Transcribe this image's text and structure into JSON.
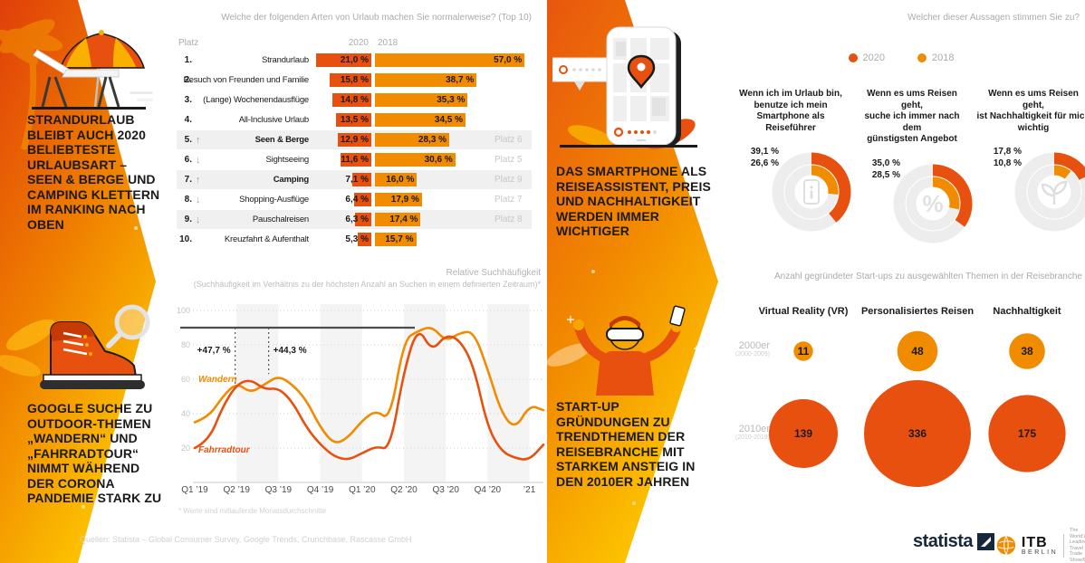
{
  "colors": {
    "red2020": "#E8500F",
    "orange2018": "#F18B00",
    "grayText": "#ABABAB",
    "dark": "#1A1A1A"
  },
  "headlines": {
    "beach": "STRANDURLAUB\nBLEIBT AUCH 2020\nBELIEBTESTE\nURLAUBSART –\nSEEN & BERGE UND\nCAMPING KLETTERN\nIM RANKING NACH\nOBEN",
    "smartphone": "DAS SMARTPHONE ALS\nREISEASSISTENT, PREIS\nUND NACHHALTIGKEIT\nWERDEN IMMER\nWICHTIGER",
    "outdoor": "GOOGLE SUCHE ZU\nOUTDOOR-THEMEN\n„WANDERN“ UND\n„FAHRRADTOUR“\nNIMMT WÄHREND\nDER CORONA\nPANDEMIE STARK ZU",
    "startup": "START-UP\nGRÜNDUNGEN ZU\nTRENDTHEMEN DER\nREISEBRANCHE MIT\nSTARKEM ANSTEIG IN\nDEN 2010ER JAHREN"
  },
  "chart_data": [
    {
      "id": "ranking",
      "type": "bar",
      "title": "Welche der folgenden Arten von Urlaub machen Sie normalerweise? (Top 10)",
      "rank_header": "Platz",
      "series_headers": [
        "2020",
        "2018"
      ],
      "rows": [
        {
          "rank": "1.",
          "trend": "",
          "label": "Strandurlaub",
          "bold": false,
          "highlight": false,
          "v2020": 21.0,
          "l2020": "21,0 %",
          "v2018": 57.0,
          "l2018": "57,0 %",
          "prev": ""
        },
        {
          "rank": "2.",
          "trend": "",
          "label": "Besuch von Freunden und Familie",
          "bold": false,
          "highlight": false,
          "v2020": 15.8,
          "l2020": "15,8 %",
          "v2018": 38.7,
          "l2018": "38,7 %",
          "prev": ""
        },
        {
          "rank": "3.",
          "trend": "",
          "label": "(Lange) Wochenendausflüge",
          "bold": false,
          "highlight": false,
          "v2020": 14.8,
          "l2020": "14,8 %",
          "v2018": 35.3,
          "l2018": "35,3 %",
          "prev": ""
        },
        {
          "rank": "4.",
          "trend": "",
          "label": "All-Inclusive Urlaub",
          "bold": false,
          "highlight": false,
          "v2020": 13.5,
          "l2020": "13,5 %",
          "v2018": 34.5,
          "l2018": "34,5 %",
          "prev": ""
        },
        {
          "rank": "5.",
          "trend": "up",
          "label": "Seen & Berge",
          "bold": true,
          "highlight": true,
          "v2020": 12.9,
          "l2020": "12,9 %",
          "v2018": 28.3,
          "l2018": "28,3 %",
          "prev": "Platz 6"
        },
        {
          "rank": "6.",
          "trend": "down",
          "label": "Sightseeing",
          "bold": false,
          "highlight": false,
          "v2020": 11.6,
          "l2020": "11,6 %",
          "v2018": 30.6,
          "l2018": "30,6 %",
          "prev": "Platz 5"
        },
        {
          "rank": "7.",
          "trend": "up",
          "label": "Camping",
          "bold": true,
          "highlight": true,
          "v2020": 7.1,
          "l2020": "7,1 %",
          "v2018": 16.0,
          "l2018": "16,0 %",
          "prev": "Platz 9"
        },
        {
          "rank": "8.",
          "trend": "down",
          "label": "Shopping-Ausflüge",
          "bold": false,
          "highlight": false,
          "v2020": 6.4,
          "l2020": "6,4 %",
          "v2018": 17.9,
          "l2018": "17,9 %",
          "prev": "Platz 7"
        },
        {
          "rank": "9.",
          "trend": "down",
          "label": "Pauschalreisen",
          "bold": false,
          "highlight": true,
          "v2020": 6.3,
          "l2020": "6,3 %",
          "v2018": 17.4,
          "l2018": "17,4 %",
          "prev": "Platz 8"
        },
        {
          "rank": "10.",
          "trend": "",
          "label": "Kreuzfahrt & Aufenthalt",
          "bold": false,
          "highlight": false,
          "v2020": 5.3,
          "l2020": "5,3 %",
          "v2018": 15.7,
          "l2018": "15,7 %",
          "prev": ""
        }
      ]
    },
    {
      "id": "statements",
      "type": "donut",
      "title": "Welcher dieser Aussagen stimmen Sie zu?",
      "legend": [
        {
          "label": "2020",
          "color": "#E8500F"
        },
        {
          "label": "2018",
          "color": "#F18B00"
        }
      ],
      "items": [
        {
          "statement": "Wenn ich im Urlaub bin,\nbenutze ich mein\nSmartphone als Reiseführer",
          "v2020": 39.1,
          "l2020": "39,1 %",
          "v2018": 26.6,
          "l2018": "26,6 %",
          "icon": "smartphone-info-icon"
        },
        {
          "statement": "Wenn es ums Reisen geht,\nsuche ich immer nach dem\ngünstigsten Angebot",
          "v2020": 35.0,
          "l2020": "35,0 %",
          "v2018": 28.5,
          "l2018": "28,5 %",
          "icon": "percent-icon"
        },
        {
          "statement": "Wenn es ums Reisen geht,\nist Nachhaltigkeit für mich\nwichtig",
          "v2020": 17.8,
          "l2020": "17,8 %",
          "v2018": 10.8,
          "l2018": "10,8 %",
          "icon": "sprout-icon"
        }
      ]
    },
    {
      "id": "search-trends",
      "type": "line",
      "title": "Relative Suchhäufigkeit",
      "subtitle": "(Suchhäufigkeit im Verhältnis zu der höchsten Anzahl an Suchen in einem definierten Zeitraum)*",
      "footnote": "* Werte sind mitlaufende Monatsdurchschnitte",
      "x_labels": [
        "Q1 ’19",
        "Q2 ’19",
        "Q3 ’19",
        "Q4 ’19",
        "Q1 ’20",
        "Q2 ’20",
        "Q3 ’20",
        "Q4 ’20",
        "’21"
      ],
      "y_ticks": [
        100,
        80,
        60,
        40,
        20
      ],
      "ylim": [
        0,
        105
      ],
      "reference_value": 90,
      "annotations": [
        {
          "text": "+47,7 %",
          "month": 2.9
        },
        {
          "text": "+44,3 %",
          "month": 5.3
        }
      ],
      "series": [
        {
          "name": "Wandern",
          "color": "#F18B00",
          "values": [
            35,
            38,
            50,
            58,
            52,
            57,
            62,
            57,
            48,
            32,
            22,
            26,
            36,
            42,
            36,
            83,
            88,
            91,
            82,
            87,
            88,
            66,
            40,
            31,
            45,
            42
          ]
        },
        {
          "name": "Fahrradtour",
          "color": "#E8500F",
          "values": [
            20,
            24,
            44,
            57,
            60,
            54,
            55,
            47,
            32,
            22,
            15,
            13,
            17,
            21,
            19,
            65,
            91,
            76,
            86,
            83,
            68,
            32,
            18,
            14,
            13,
            22
          ]
        }
      ]
    },
    {
      "id": "startups",
      "type": "bubble",
      "title": "Anzahl gegründeter Start-ups zu ausgewählten Themen in der Reisebranche",
      "columns": [
        "Virtual Reality (VR)",
        "Personalisiertes Reisen",
        "Nachhaltigkeit"
      ],
      "rows": [
        {
          "label": "2000er",
          "sublabel": "(2000-2009)",
          "color": "#F18B00",
          "values": [
            11,
            48,
            38
          ]
        },
        {
          "label": "2010er",
          "sublabel": "(2010-2019)",
          "color": "#E8500F",
          "values": [
            139,
            336,
            175
          ]
        }
      ]
    }
  ],
  "footer": {
    "sources": "Quellen: Statista – Global Consumer Survey, Google Trends, Crunchbase, Rascasse GmbH",
    "statista": "statista",
    "itb": {
      "name": "ITB",
      "city": "BERLIN",
      "tagline": "The World’s\nLeading\nTravel Trade\nShow®"
    }
  }
}
